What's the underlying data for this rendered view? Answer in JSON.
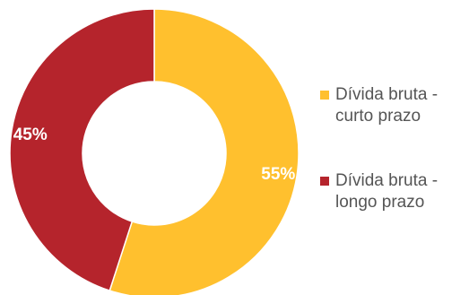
{
  "chart_data": {
    "type": "pie",
    "variant": "donut",
    "title": "",
    "series": [
      {
        "label": "Dívida bruta - curto prazo",
        "legend_lines": "Dívida bruta -\ncurto prazo",
        "value": 55,
        "value_label": "55%",
        "color": "#FFC02E"
      },
      {
        "label": "Dívida bruta - longo prazo",
        "legend_lines": "Dívida bruta -\nlongo prazo",
        "value": 45,
        "value_label": "45%",
        "color": "#B5242C"
      }
    ],
    "legend": "right"
  }
}
